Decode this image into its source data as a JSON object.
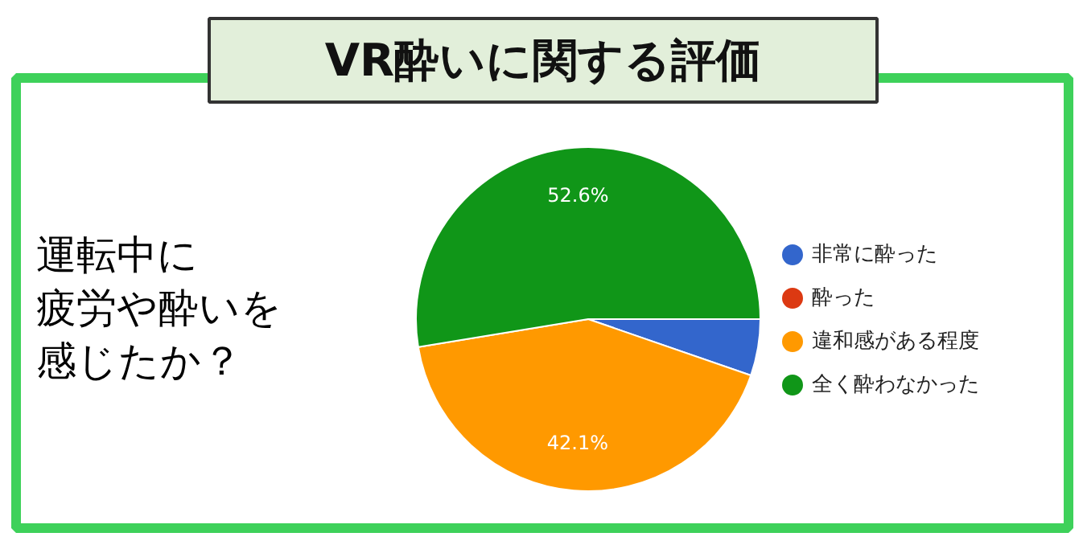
{
  "chart_data": {
    "type": "pie",
    "title": "VR酔いに関する評価",
    "categories": [
      "非常に酔った",
      "酔った",
      "違和感がある程度",
      "全く酔わなかった"
    ],
    "values": [
      5.3,
      0,
      42.1,
      52.6
    ],
    "colors": [
      "#3366cc",
      "#dc3912",
      "#ff9900",
      "#109618"
    ],
    "value_labels": [
      null,
      null,
      "42.1%",
      "52.6%"
    ],
    "annotations": [
      "運転中に",
      "疲労や酔いを",
      "感じたか？"
    ],
    "legend": "right"
  }
}
